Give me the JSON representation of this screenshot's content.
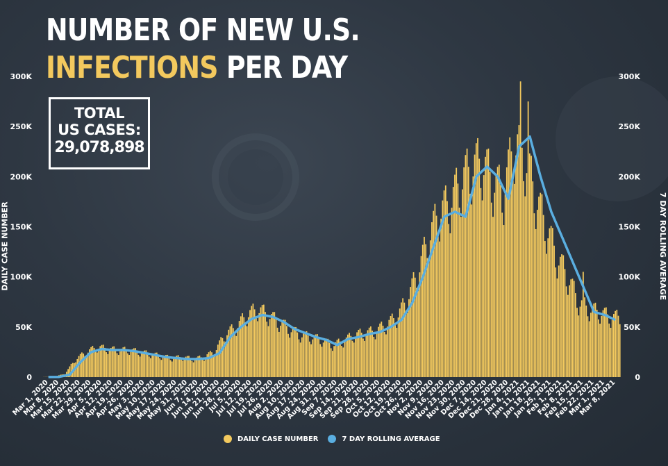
{
  "title": {
    "line1": "NUMBER OF NEW U.S.",
    "line2_highlight": "INFECTIONS",
    "line2_rest": " PER DAY"
  },
  "total_box": {
    "line1": "TOTAL",
    "line2": "US CASES:",
    "value": "29,078,898"
  },
  "colors": {
    "bars": "#f3c95e",
    "rolling_line": "#5aaee0",
    "background": "#2e3742",
    "text": "#ffffff"
  },
  "legend": [
    {
      "label": "DAILY CASE NUMBER",
      "color": "#f3c95e"
    },
    {
      "label": "7 DAY ROLLING AVERAGE",
      "color": "#5aaee0"
    }
  ],
  "chart_data": {
    "type": "bar",
    "ylabel": "DAILY CASE NUMBER",
    "ylabel_right": "7 DAY ROLLING AVERAGE",
    "ylim": [
      0,
      300000
    ],
    "y_ticks": [
      "0",
      "50K",
      "100K",
      "150K",
      "200K",
      "250K",
      "300K"
    ],
    "x_ticks": [
      "Mar 1, 2020",
      "Mar 8, 2020",
      "Mar 15, 2020",
      "Mar 22, 2020",
      "Mar 29, 2020",
      "Apr 5, 2020",
      "Apr 12, 2020",
      "Apr 19, 2020",
      "Apr 26, 2020",
      "May 3, 2020",
      "May 10, 2020",
      "May 17, 2020",
      "May 24, 2020",
      "May 31, 2020",
      "Jun 7, 2020",
      "Jun 14, 2020",
      "Jun 21, 2020",
      "Jun 28, 2020",
      "Jul 5, 2020",
      "Jul 12, 2020",
      "Jul 19, 2020",
      "Jul 26, 2020",
      "Aug 2, 2020",
      "Aug 10, 2020",
      "Aug 17, 2020",
      "Aug 24, 2020",
      "Aug 31, 2020",
      "Sep 7, 2020",
      "Sep 14, 2020",
      "Sep 21, 2020",
      "Sep 28, 2020",
      "Oct 5, 2020",
      "Oct 12, 2020",
      "Oct 19, 2020",
      "Oct 26, 2020",
      "Nov 2, 2020",
      "Nov 9, 2020",
      "Nov 16, 2020",
      "Nov 23, 2020",
      "Nov 30, 2020",
      "Dec 7, 2020",
      "Dec 14, 2020",
      "Dec 21, 2020",
      "Dec 28, 2020",
      "Jan 4, 2021",
      "Jan 11, 2021",
      "Jan 18, 2021",
      "Jan 25, 2021",
      "Feb 1, 2021",
      "Feb 8, 2021",
      "Feb 15, 2021",
      "Feb 22, 2021",
      "Mar 1, 2021",
      "Mar 8, 2021"
    ],
    "series": [
      {
        "name": "DAILY CASE NUMBER",
        "kind": "bar",
        "weekly_values": [
          100,
          300,
          3500,
          18000,
          25000,
          30000,
          28000,
          27000,
          27000,
          25000,
          23000,
          21000,
          19000,
          20000,
          18000,
          20000,
          26000,
          43000,
          50000,
          62000,
          68000,
          62000,
          55000,
          48000,
          42000,
          40000,
          37000,
          32000,
          36000,
          42000,
          44000,
          46000,
          52000,
          60000,
          78000,
          105000,
          140000,
          165000,
          175000,
          195000,
          210000,
          215000,
          195000,
          185000,
          235000,
          220000,
          180000,
          150000,
          120000,
          100000,
          75000,
          68000,
          65000,
          60000
        ]
      },
      {
        "name": "7 DAY ROLLING AVERAGE",
        "kind": "line",
        "weekly_values": [
          100,
          200,
          2500,
          15000,
          25000,
          28000,
          27000,
          27000,
          26000,
          24000,
          22000,
          20000,
          19000,
          18000,
          18000,
          19000,
          24000,
          40000,
          50000,
          58000,
          62000,
          60000,
          55000,
          48000,
          44000,
          40000,
          37000,
          32000,
          38000,
          40000,
          43000,
          45000,
          50000,
          57000,
          74000,
          100000,
          130000,
          160000,
          165000,
          160000,
          200000,
          210000,
          200000,
          178000,
          230000,
          240000,
          200000,
          165000,
          140000,
          115000,
          90000,
          65000,
          62000,
          57000
        ]
      }
    ]
  }
}
